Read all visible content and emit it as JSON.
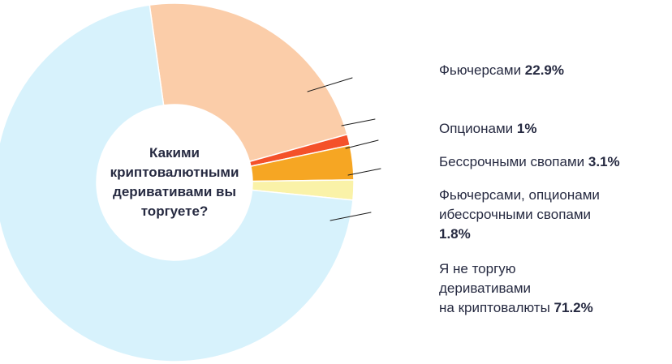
{
  "chart_data": {
    "type": "pie",
    "donut": true,
    "legend_position": "right",
    "title": "Какими криптовалютными деривативами вы торгуете?",
    "center_question_lines": [
      "Какими",
      "криптовалютными",
      "деривативами вы",
      "торгуете?"
    ],
    "series": [
      {
        "id": "futures",
        "name": "Фьючерсами",
        "value": 22.9,
        "pct_label": "22.9%",
        "color": "#fbcda9"
      },
      {
        "id": "options",
        "name": "Опционами",
        "value": 1,
        "pct_label": "1%",
        "color": "#f4512a"
      },
      {
        "id": "perpetual-swaps",
        "name": "Бессрочными свопами",
        "value": 3.1,
        "pct_label": "3.1%",
        "color": "#f6a623"
      },
      {
        "id": "futures-options-swaps",
        "name": "Фьючерсами, опционами ибессрочными свопами",
        "value": 1.8,
        "pct_label": "1.8%",
        "color": "#faf2a8"
      },
      {
        "id": "no-derivatives",
        "name": "Я не торгую деривативами на криптовалюты",
        "value": 71.2,
        "pct_label": "71.2%",
        "color": "#d7f2fc"
      }
    ]
  },
  "legend": {
    "items": [
      {
        "slice": "futures",
        "lines": [
          "Фьючерсами"
        ],
        "pct": "22.9%",
        "pct_new_line": false
      },
      {
        "slice": "options",
        "lines": [
          "Опционами"
        ],
        "pct": "1%",
        "pct_new_line": false
      },
      {
        "slice": "perpetual-swaps",
        "lines": [
          "Бессрочными свопами"
        ],
        "pct": "3.1%",
        "pct_new_line": false
      },
      {
        "slice": "futures-options-swaps",
        "lines": [
          "Фьючерсами, опционами",
          "ибессрочными свопами"
        ],
        "pct": "1.8%",
        "pct_new_line": true
      },
      {
        "slice": "no-derivatives",
        "lines": [
          "Я не торгую",
          "деривативами",
          "на криптовалюты"
        ],
        "pct": "71.2%",
        "pct_new_line": false
      }
    ]
  },
  "colors": {
    "text": "#262a41",
    "leader_line": "#1b1b1b",
    "background": "#ffffff"
  }
}
